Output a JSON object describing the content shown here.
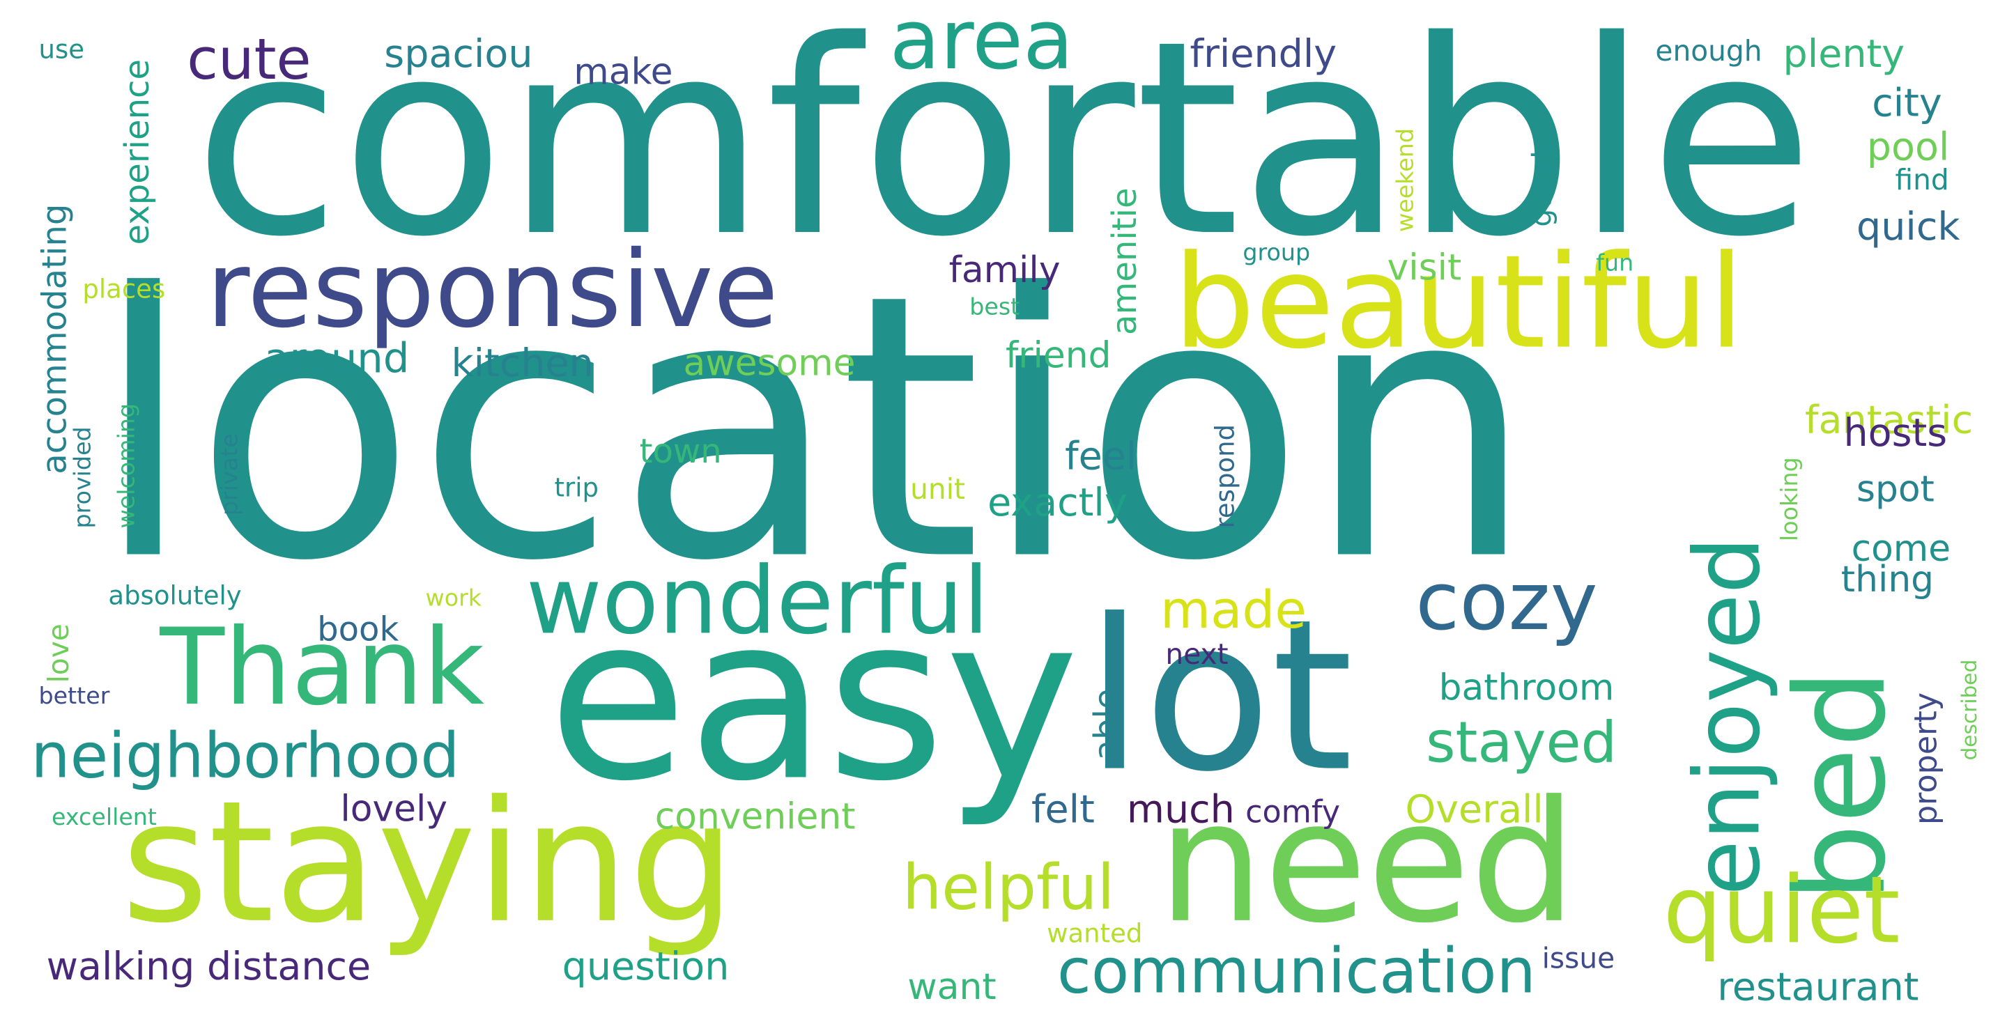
{
  "colors": {
    "background": "#ffffff",
    "dark_purple": "#44195a",
    "purple": "#482878",
    "indigo": "#3e4a89",
    "blue": "#31688e",
    "teal_blue": "#26828e",
    "teal": "#21918c",
    "green_teal": "#1fa187",
    "green": "#35b779",
    "light_green": "#6ece58",
    "lime": "#b5de2b",
    "yellow": "#d8e219"
  },
  "words": [
    {
      "text": "comfortable"
    },
    {
      "text": "location"
    },
    {
      "text": "easy"
    },
    {
      "text": "staying"
    },
    {
      "text": "need"
    },
    {
      "text": "responsive"
    },
    {
      "text": "beautiful"
    },
    {
      "text": "lot"
    },
    {
      "text": "bed"
    },
    {
      "text": "enjoyed"
    },
    {
      "text": "Thank"
    },
    {
      "text": "wonderful"
    },
    {
      "text": "quiet"
    },
    {
      "text": "area"
    },
    {
      "text": "cozy"
    },
    {
      "text": "neighborhood"
    },
    {
      "text": "communication"
    },
    {
      "text": "helpful"
    },
    {
      "text": "cute"
    },
    {
      "text": "stayed"
    },
    {
      "text": "made"
    },
    {
      "text": "spaciou"
    },
    {
      "text": "friendly"
    },
    {
      "text": "plenty"
    },
    {
      "text": "make"
    },
    {
      "text": "enough"
    },
    {
      "text": "city"
    },
    {
      "text": "pool"
    },
    {
      "text": "quick"
    },
    {
      "text": "experience"
    },
    {
      "text": "accommodating"
    },
    {
      "text": "amenitie"
    },
    {
      "text": "family"
    },
    {
      "text": "visit"
    },
    {
      "text": "guest"
    },
    {
      "text": "weekend"
    },
    {
      "text": "find"
    },
    {
      "text": "around"
    },
    {
      "text": "kitchen"
    },
    {
      "text": "awesome"
    },
    {
      "text": "friend"
    },
    {
      "text": "fantastic"
    },
    {
      "text": "hosts"
    },
    {
      "text": "feel"
    },
    {
      "text": "town"
    },
    {
      "text": "exactly"
    },
    {
      "text": "spot"
    },
    {
      "text": "come"
    },
    {
      "text": "thing"
    },
    {
      "text": "looking"
    },
    {
      "text": "welcoming"
    },
    {
      "text": "private"
    },
    {
      "text": "provided"
    },
    {
      "text": "trip"
    },
    {
      "text": "unit"
    },
    {
      "text": "absolutely"
    },
    {
      "text": "love"
    },
    {
      "text": "book"
    },
    {
      "text": "next"
    },
    {
      "text": "bathroom"
    },
    {
      "text": "able"
    },
    {
      "text": "property"
    },
    {
      "text": "described"
    },
    {
      "text": "better"
    },
    {
      "text": "excellent"
    },
    {
      "text": "lovely"
    },
    {
      "text": "convenient"
    },
    {
      "text": "felt"
    },
    {
      "text": "much"
    },
    {
      "text": "comfy"
    },
    {
      "text": "Overall"
    },
    {
      "text": "walking distance"
    },
    {
      "text": "question"
    },
    {
      "text": "wanted"
    },
    {
      "text": "want"
    },
    {
      "text": "issue"
    },
    {
      "text": "restaurant"
    },
    {
      "text": "work"
    },
    {
      "text": "use"
    },
    {
      "text": "places"
    },
    {
      "text": "group"
    },
    {
      "text": "best"
    },
    {
      "text": "fun"
    },
    {
      "text": "respond"
    }
  ]
}
